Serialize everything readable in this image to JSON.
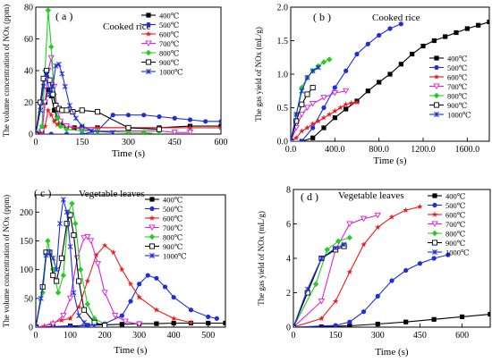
{
  "chart_data": [
    {
      "id": "a",
      "type": "line",
      "panel_label": "( a )",
      "annotation": "Cooked rice",
      "xlabel": "Time (s)",
      "ylabel": "The volume concentration of NOx (ppm)",
      "xlim": [
        0,
        600
      ],
      "ylim": [
        0,
        80
      ],
      "xticks": [
        0,
        150,
        300,
        450,
        600
      ],
      "yticks": [
        0,
        20,
        40,
        60,
        80
      ],
      "series": [
        {
          "name": "400℃",
          "color": "#000000",
          "marker": "square",
          "x": [
            0,
            20,
            30,
            40,
            50,
            60,
            70,
            80,
            100,
            125,
            150,
            200,
            300,
            400,
            500,
            600
          ],
          "y": [
            0,
            1,
            20,
            28,
            24,
            15,
            10,
            7,
            5,
            4,
            4,
            4,
            4,
            4,
            5,
            5
          ]
        },
        {
          "name": "500℃",
          "color": "#1c2ee0",
          "marker": "circle",
          "x": [
            0,
            20,
            50,
            100,
            150,
            200,
            250,
            300,
            350,
            400,
            450,
            500,
            550,
            600
          ],
          "y": [
            0,
            0,
            0,
            0,
            0,
            2,
            12,
            12,
            12,
            11,
            10,
            9,
            8,
            8
          ]
        },
        {
          "name": "600℃",
          "color": "#ee1c1c",
          "marker": "star",
          "x": [
            0,
            20,
            30,
            40,
            50,
            60,
            70,
            80,
            100,
            120,
            150,
            200,
            300,
            400,
            500,
            600
          ],
          "y": [
            0,
            0,
            5,
            15,
            12,
            8,
            6,
            5,
            5,
            4,
            4,
            4,
            4,
            4,
            4,
            4
          ]
        },
        {
          "name": "700℃",
          "color": "#dd22dd",
          "marker": "triangle-down",
          "x": [
            0,
            20,
            30,
            40,
            50,
            60,
            70,
            80,
            100,
            150,
            200,
            300,
            400,
            450,
            500
          ],
          "y": [
            0,
            2,
            20,
            40,
            48,
            30,
            15,
            8,
            5,
            3,
            2,
            2,
            2,
            1,
            1
          ]
        },
        {
          "name": "800℃",
          "color": "#22cc22",
          "marker": "diamond",
          "x": [
            0,
            20,
            30,
            40,
            50,
            60,
            70,
            80,
            100,
            150,
            200,
            300,
            350,
            400
          ],
          "y": [
            0,
            5,
            40,
            78,
            55,
            25,
            10,
            5,
            3,
            2,
            2,
            1,
            1,
            0
          ]
        },
        {
          "name": "900℃",
          "color": "#000000",
          "marker": "square-open",
          "x": [
            0,
            15,
            25,
            35,
            45,
            55,
            65,
            75,
            85,
            100,
            120,
            150,
            200,
            300,
            400
          ],
          "y": [
            0,
            20,
            35,
            40,
            34,
            25,
            18,
            16,
            15,
            15,
            14,
            15,
            14,
            4,
            3
          ]
        },
        {
          "name": "1000℃",
          "color": "#1c2ee0",
          "marker": "asterisk",
          "x": [
            0,
            15,
            25,
            35,
            45,
            55,
            65,
            75,
            85,
            95,
            110,
            130,
            150,
            180,
            250
          ],
          "y": [
            0,
            15,
            30,
            38,
            25,
            30,
            43,
            44,
            38,
            30,
            18,
            10,
            5,
            2,
            1
          ]
        }
      ]
    },
    {
      "id": "b",
      "type": "line",
      "panel_label": "( b )",
      "annotation": "Cooked rice",
      "xlabel": "Time (s)",
      "ylabel": "The gas yield of NOx (mL/g)",
      "xlim": [
        0,
        1800
      ],
      "ylim": [
        0,
        2.0
      ],
      "xticks": [
        0,
        400,
        800,
        1200,
        1600
      ],
      "yticks": [
        0.0,
        0.5,
        1.0,
        1.5,
        2.0
      ],
      "series": [
        {
          "name": "400℃",
          "color": "#000000",
          "marker": "square",
          "x": [
            0,
            100,
            200,
            300,
            400,
            500,
            600,
            700,
            800,
            900,
            1000,
            1100,
            1200,
            1300,
            1400,
            1500,
            1600,
            1700,
            1800
          ],
          "y": [
            0,
            0,
            0.05,
            0.2,
            0.35,
            0.48,
            0.6,
            0.75,
            0.88,
            1.0,
            1.15,
            1.3,
            1.42,
            1.5,
            1.56,
            1.62,
            1.68,
            1.73,
            1.78
          ]
        },
        {
          "name": "500℃",
          "color": "#1c2ee0",
          "marker": "circle",
          "x": [
            0,
            100,
            200,
            300,
            400,
            500,
            600,
            700,
            800,
            900,
            1000
          ],
          "y": [
            0,
            0,
            0.2,
            0.5,
            0.8,
            1.05,
            1.3,
            1.45,
            1.58,
            1.68,
            1.75
          ]
        },
        {
          "name": "600℃",
          "color": "#ee1c1c",
          "marker": "star",
          "x": [
            0,
            50,
            100,
            150,
            200,
            250,
            300,
            350,
            400,
            450,
            500,
            550,
            600
          ],
          "y": [
            0,
            0.05,
            0.15,
            0.2,
            0.26,
            0.3,
            0.35,
            0.4,
            0.45,
            0.5,
            0.55,
            0.57,
            0.58
          ]
        },
        {
          "name": "700℃",
          "color": "#dd22dd",
          "marker": "triangle-down",
          "x": [
            0,
            50,
            100,
            150,
            200,
            300,
            400,
            500
          ],
          "y": [
            0,
            0.2,
            0.4,
            0.5,
            0.56,
            0.65,
            0.72,
            0.75
          ]
        },
        {
          "name": "800℃",
          "color": "#22cc22",
          "marker": "diamond",
          "x": [
            0,
            50,
            100,
            150,
            200,
            250,
            300,
            350
          ],
          "y": [
            0,
            0.4,
            0.8,
            0.95,
            1.05,
            1.12,
            1.18,
            1.22
          ]
        },
        {
          "name": "900℃",
          "color": "#000000",
          "marker": "square-open",
          "x": [
            0,
            50,
            100,
            150,
            200
          ],
          "y": [
            0,
            0.3,
            0.55,
            0.7,
            0.8
          ]
        },
        {
          "name": "1000℃",
          "color": "#1c2ee0",
          "marker": "asterisk",
          "x": [
            0,
            50,
            100,
            150,
            200,
            250
          ],
          "y": [
            0,
            0.4,
            0.75,
            0.95,
            1.05,
            1.1
          ]
        }
      ]
    },
    {
      "id": "c",
      "type": "line",
      "panel_label": "( c )",
      "annotation": "Vegetable leaves",
      "xlabel": "Time (s)",
      "ylabel": "The volume concentration of NOx (ppm)",
      "xlim": [
        0,
        550
      ],
      "ylim": [
        0,
        230
      ],
      "xticks": [
        0,
        100,
        200,
        300,
        400,
        500
      ],
      "yticks": [
        0,
        50,
        100,
        150,
        200
      ],
      "series": [
        {
          "name": "400℃",
          "color": "#000000",
          "marker": "square",
          "x": [
            0,
            50,
            100,
            150,
            200,
            250,
            300,
            350,
            400,
            450,
            500,
            550
          ],
          "y": [
            0,
            1,
            2,
            3,
            4,
            5,
            6,
            6,
            7,
            7,
            7,
            7
          ]
        },
        {
          "name": "500℃",
          "color": "#1c2ee0",
          "marker": "circle",
          "x": [
            0,
            50,
            100,
            150,
            200,
            250,
            275,
            300,
            325,
            350,
            375,
            400,
            450,
            500,
            525
          ],
          "y": [
            0,
            0,
            1,
            3,
            6,
            20,
            45,
            75,
            90,
            85,
            70,
            52,
            30,
            18,
            15
          ]
        },
        {
          "name": "600℃",
          "color": "#ee1c1c",
          "marker": "star",
          "x": [
            0,
            25,
            50,
            75,
            100,
            125,
            150,
            175,
            200,
            225,
            250,
            275,
            300,
            350,
            400,
            450
          ],
          "y": [
            0,
            2,
            8,
            12,
            15,
            35,
            80,
            125,
            142,
            130,
            100,
            75,
            52,
            30,
            15,
            8
          ]
        },
        {
          "name": "700℃",
          "color": "#dd22dd",
          "marker": "triangle-down",
          "x": [
            0,
            50,
            80,
            100,
            120,
            140,
            150,
            160,
            180,
            200,
            230,
            260,
            300
          ],
          "y": [
            0,
            5,
            20,
            50,
            120,
            155,
            157,
            150,
            110,
            60,
            20,
            10,
            5
          ]
        },
        {
          "name": "800℃",
          "color": "#22cc22",
          "marker": "diamond",
          "x": [
            0,
            20,
            35,
            50,
            65,
            80,
            95,
            105,
            115,
            130,
            150,
            170,
            200
          ],
          "y": [
            0,
            60,
            150,
            100,
            60,
            90,
            200,
            215,
            180,
            100,
            40,
            15,
            5
          ]
        },
        {
          "name": "900℃",
          "color": "#000000",
          "marker": "square-open",
          "x": [
            0,
            20,
            30,
            40,
            50,
            60,
            75,
            90,
            100,
            110,
            125,
            140,
            170,
            200
          ],
          "y": [
            0,
            70,
            130,
            130,
            90,
            80,
            120,
            180,
            195,
            160,
            80,
            30,
            8,
            3
          ]
        },
        {
          "name": "1000℃",
          "color": "#1c2ee0",
          "marker": "asterisk",
          "x": [
            0,
            15,
            30,
            40,
            50,
            60,
            70,
            80,
            90,
            100,
            110,
            125,
            140,
            170
          ],
          "y": [
            0,
            50,
            125,
            130,
            120,
            100,
            180,
            222,
            200,
            140,
            60,
            20,
            8,
            2
          ]
        }
      ]
    },
    {
      "id": "d",
      "type": "line",
      "panel_label": "( d )",
      "annotation": "Vegetable leaves",
      "xlabel": "Time (s)",
      "ylabel": "The gas yield of NOx (mL/g)",
      "xlim": [
        0,
        700
      ],
      "ylim": [
        0,
        8
      ],
      "xticks": [
        0,
        150,
        300,
        450,
        600
      ],
      "yticks": [
        0,
        2,
        4,
        6,
        8
      ],
      "series": [
        {
          "name": "400℃",
          "color": "#000000",
          "marker": "square",
          "x": [
            0,
            100,
            200,
            300,
            400,
            500,
            600,
            700
          ],
          "y": [
            0,
            0.02,
            0.08,
            0.18,
            0.3,
            0.45,
            0.6,
            0.75
          ]
        },
        {
          "name": "500℃",
          "color": "#1c2ee0",
          "marker": "circle",
          "x": [
            0,
            150,
            200,
            250,
            300,
            350,
            400,
            450,
            500,
            550
          ],
          "y": [
            0,
            0.1,
            0.3,
            0.9,
            1.8,
            2.7,
            3.3,
            3.7,
            4.0,
            4.2
          ]
        },
        {
          "name": "600℃",
          "color": "#ee1c1c",
          "marker": "star",
          "x": [
            0,
            100,
            150,
            200,
            250,
            300,
            350,
            400,
            450
          ],
          "y": [
            0,
            0.5,
            1.5,
            3.2,
            4.8,
            5.8,
            6.4,
            6.8,
            7.0
          ]
        },
        {
          "name": "700℃",
          "color": "#dd22dd",
          "marker": "triangle-down",
          "x": [
            0,
            100,
            150,
            200,
            250,
            300
          ],
          "y": [
            0,
            1.5,
            4.5,
            6.0,
            6.3,
            6.5
          ]
        },
        {
          "name": "800℃",
          "color": "#22cc22",
          "marker": "diamond",
          "x": [
            0,
            80,
            120,
            160,
            200
          ],
          "y": [
            0,
            2.5,
            4.5,
            5.0,
            5.2
          ]
        },
        {
          "name": "900℃",
          "color": "#000000",
          "marker": "square-open",
          "x": [
            0,
            50,
            100,
            150,
            180
          ],
          "y": [
            0,
            2.0,
            4.0,
            4.5,
            4.7
          ]
        },
        {
          "name": "1000℃",
          "color": "#1c2ee0",
          "marker": "asterisk",
          "x": [
            0,
            50,
            100,
            150,
            180
          ],
          "y": [
            0,
            2.2,
            4.0,
            4.6,
            4.8
          ]
        }
      ]
    }
  ]
}
